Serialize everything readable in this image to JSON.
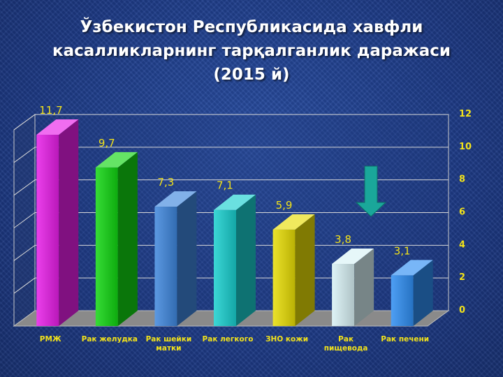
{
  "chart_data": {
    "type": "bar",
    "title_lines": [
      "Ўзбекистон Республикасида хавфли",
      "касалликларнинг тарқалганлик даражаси",
      "(2015 й)"
    ],
    "categories": [
      [
        "РМЖ"
      ],
      [
        "Рак желудка"
      ],
      [
        "Рак шейки",
        "матки"
      ],
      [
        "Рак легкого"
      ],
      [
        "ЗНО кожи"
      ],
      [
        "Рак",
        "пищевода"
      ],
      [
        "Рак печени"
      ]
    ],
    "values": [
      11.7,
      9.7,
      7.3,
      7.1,
      5.9,
      3.8,
      3.1
    ],
    "value_labels": [
      "11,7",
      "9,7",
      "7,3",
      "7,1",
      "5,9",
      "3,8",
      "3,1"
    ],
    "colors": [
      "#e81ee8",
      "#12d612",
      "#3f87dd",
      "#19d0cf",
      "#e8dd05",
      "#d9f2f6",
      "#2f8ef2"
    ],
    "ylim": [
      0,
      12
    ],
    "yticks": [
      "0",
      "2",
      "4",
      "6",
      "8",
      "10",
      "12"
    ],
    "grid": true,
    "legend": "none",
    "annotation": "arrow-down-icon",
    "annotation_color": "#1aa79a"
  }
}
